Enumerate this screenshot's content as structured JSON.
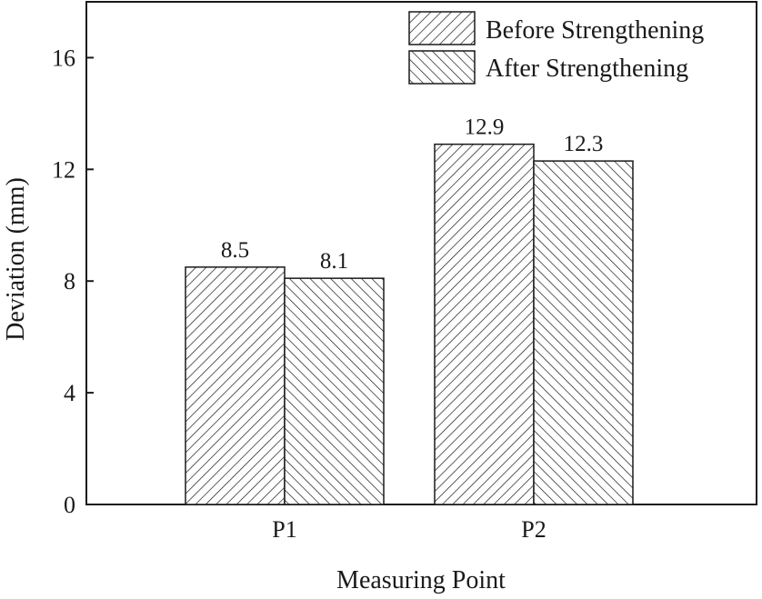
{
  "chart_data": {
    "type": "bar",
    "title": "",
    "xlabel": "Measuring Point",
    "ylabel": "Deviation (mm)",
    "categories": [
      "P1",
      "P2"
    ],
    "ylim": [
      0,
      18
    ],
    "yticks": [
      0,
      4,
      8,
      12,
      16
    ],
    "grid": false,
    "legend_position": "top-right",
    "series": [
      {
        "name": "Before Strengthening",
        "values": [
          8.5,
          12.9
        ],
        "labels": [
          "8.5",
          "12.9"
        ],
        "pattern": "forward-hatch"
      },
      {
        "name": "After Strengthening",
        "values": [
          8.1,
          12.3
        ],
        "labels": [
          "8.1",
          "12.3"
        ],
        "pattern": "back-hatch"
      }
    ]
  }
}
